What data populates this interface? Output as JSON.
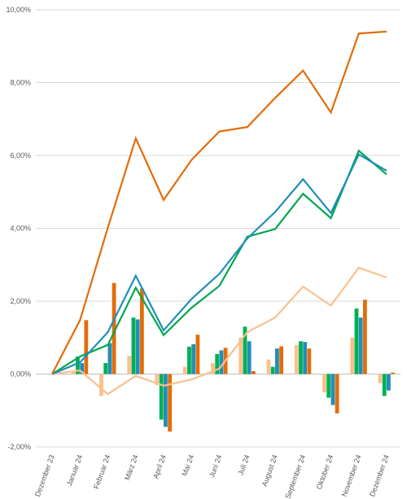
{
  "chart_data": {
    "type": "bar",
    "categories": [
      "Dezember 23",
      "Januar 24",
      "Februar 24",
      "März 24",
      "April 24",
      "Mai 24",
      "Juni 24",
      "Juli 24",
      "August 24",
      "September 24",
      "Oktober 24",
      "November 24",
      "Dezember 24"
    ],
    "y_ticks": [
      "-2,00%",
      "0,00%",
      "2,00%",
      "4,00%",
      "6,00%",
      "8,00%",
      "10,00%"
    ],
    "ylim": [
      -2,
      10
    ],
    "grid": true,
    "title": "",
    "xlabel": "",
    "ylabel": "",
    "bar_series": [
      {
        "color": "#fac090",
        "values": [
          0,
          0.08,
          -0.6,
          0.5,
          -0.3,
          0.2,
          0.3,
          1.0,
          0.4,
          0.8,
          -0.5,
          1.0,
          -0.25
        ]
      },
      {
        "color": "#00b050",
        "values": [
          0,
          0.48,
          0.3,
          1.55,
          -1.25,
          0.75,
          0.55,
          1.3,
          0.2,
          0.9,
          -0.65,
          1.8,
          -0.6
        ]
      },
      {
        "color": "#1f8fb8",
        "values": [
          0,
          0.3,
          0.85,
          1.5,
          -1.45,
          0.82,
          0.65,
          0.9,
          0.7,
          0.88,
          -0.85,
          1.55,
          -0.45
        ]
      },
      {
        "color": "#e46c0a",
        "values": [
          0,
          1.48,
          2.5,
          2.35,
          -1.58,
          1.08,
          0.72,
          0.08,
          0.76,
          0.7,
          -1.08,
          2.04,
          0.04
        ]
      }
    ],
    "line_series": [
      {
        "color": "#fac090",
        "values": [
          0,
          0.1,
          -0.55,
          -0.05,
          -0.32,
          -0.15,
          0.15,
          1.15,
          1.55,
          2.4,
          1.88,
          2.92,
          2.65
        ]
      },
      {
        "color": "#00a650",
        "values": [
          0,
          0.48,
          0.8,
          2.37,
          1.07,
          1.82,
          2.42,
          3.77,
          3.98,
          4.95,
          4.28,
          6.13,
          5.48
        ]
      },
      {
        "color": "#1f8fb8",
        "values": [
          0,
          0.32,
          1.15,
          2.7,
          1.2,
          2.06,
          2.75,
          3.72,
          4.45,
          5.35,
          4.42,
          6.03,
          5.58
        ]
      },
      {
        "color": "#e36c09",
        "values": [
          0,
          1.48,
          4.02,
          6.47,
          4.78,
          5.88,
          6.66,
          6.78,
          7.58,
          8.33,
          7.18,
          9.35,
          9.4
        ]
      }
    ]
  }
}
